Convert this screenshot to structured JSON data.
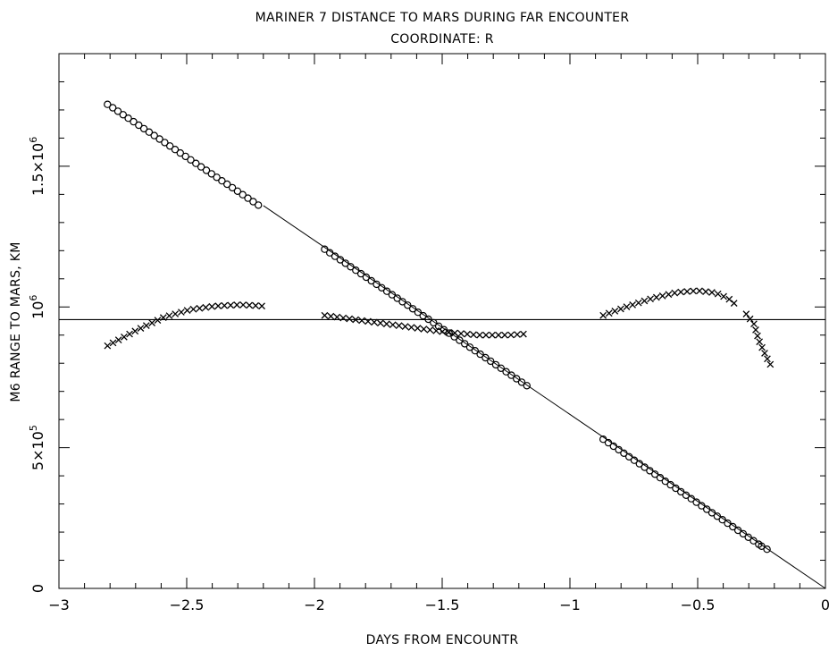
{
  "chart_data": {
    "type": "scatter",
    "title": "MARINER 7 DISTANCE TO MARS DURING FAR ENCOUNTER",
    "subtitle": "COORDINATE: R",
    "xlabel": "DAYS FROM ENCOUNTR",
    "ylabel": "M6 RANGE TO MARS, KM",
    "xlim": [
      -3,
      0
    ],
    "ylim": [
      0,
      1900000
    ],
    "grid": false,
    "x_ticks": [
      {
        "value": -3,
        "label": "−3"
      },
      {
        "value": -2.5,
        "label": "−2.5"
      },
      {
        "value": -2,
        "label": "−2"
      },
      {
        "value": -1.5,
        "label": "−1.5"
      },
      {
        "value": -1,
        "label": "−1"
      },
      {
        "value": -0.5,
        "label": "−0.5"
      },
      {
        "value": 0,
        "label": "0"
      }
    ],
    "y_ticks": [
      {
        "value": 0,
        "base": "0",
        "exp": ""
      },
      {
        "value": 500000,
        "base": "5×10",
        "exp": "5"
      },
      {
        "value": 1000000,
        "base": "10",
        "exp": "6"
      },
      {
        "value": 1500000,
        "base": "1.5×10",
        "exp": "6"
      }
    ],
    "reference_line": {
      "y": 955000
    },
    "fit_line": {
      "x": [
        -2.2,
        0
      ],
      "y": [
        1360000,
        0
      ]
    },
    "series": [
      {
        "marker": "circle",
        "segments": [
          {
            "x": [
              -2.81,
              -2.2
            ],
            "y": [
              1720000,
              1350000
            ]
          },
          {
            "x": [
              -1.96,
              -1.16
            ],
            "y": [
              1205000,
              715000
            ]
          },
          {
            "x": [
              -0.87,
              -0.25
            ],
            "y": [
              530000,
              150000
            ]
          },
          {
            "x": [
              -0.25,
              -0.21
            ],
            "y": [
              150000,
              130000
            ]
          }
        ]
      },
      {
        "marker": "cross",
        "segments": [
          {
            "x": [
              -2.81,
              -2.69,
              -2.59,
              -2.49,
              -2.39,
              -2.29,
              -2.2
            ],
            "y": [
              862000,
              920000,
              963000,
              990000,
              1003000,
              1008000,
              1003000
            ]
          },
          {
            "x": [
              -1.96,
              -1.84,
              -1.72,
              -1.6,
              -1.48,
              -1.36,
              -1.24,
              -1.16
            ],
            "y": [
              970000,
              955000,
              940000,
              925000,
              910000,
              900000,
              900000,
              905000
            ]
          },
          {
            "x": [
              -0.87,
              -0.78,
              -0.68,
              -0.58,
              -0.5,
              -0.43,
              -0.38,
              -0.34
            ],
            "y": [
              970000,
              1000000,
              1030000,
              1052000,
              1058000,
              1050000,
              1030000,
              1000000
            ]
          },
          {
            "x": [
              -0.31,
              -0.28,
              -0.26,
              -0.245,
              -0.23,
              -0.215
            ],
            "y": [
              975000,
              940000,
              880000,
              850000,
              820000,
              795000
            ]
          }
        ]
      }
    ]
  }
}
